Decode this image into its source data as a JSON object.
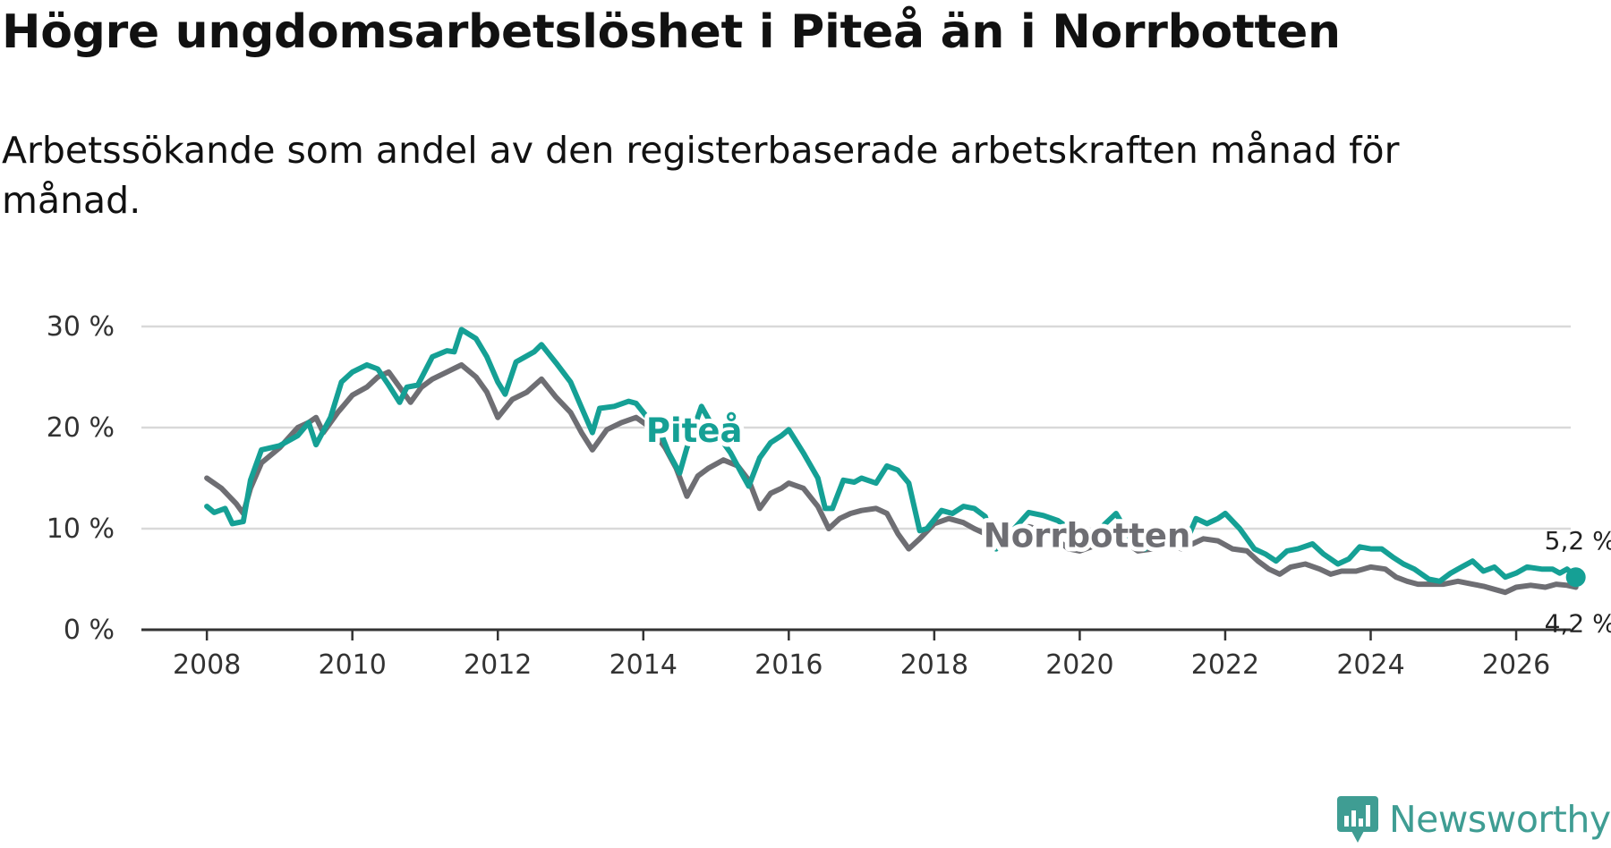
{
  "title": "Högre ungdomsarbetslöshet i Piteå än i Norrbotten",
  "subtitle": "Arbetssökande som andel av den registerbaserade arbetskraften månad för månad.",
  "brand": "Newsworthy",
  "colors": {
    "pitea": "#15a095",
    "norrbotten": "#6e6e73",
    "grid": "#d9d9d9",
    "axis": "#333333",
    "brand": "#3f9d93"
  },
  "chart_data": {
    "type": "line",
    "title": "Högre ungdomsarbetslöshet i Piteå än i Norrbotten",
    "xlabel": "",
    "ylabel": "",
    "xlim": [
      2007.1,
      2026.75
    ],
    "ylim": [
      0,
      30
    ],
    "y_ticks": [
      0,
      10,
      20,
      30
    ],
    "y_tick_labels": [
      "0 %",
      "10 %",
      "20 %",
      "30 %"
    ],
    "x_ticks": [
      2008,
      2010,
      2012,
      2014,
      2016,
      2018,
      2020,
      2022,
      2024,
      2026
    ],
    "x_tick_labels": [
      "2008",
      "2010",
      "2012",
      "2014",
      "2016",
      "2018",
      "2020",
      "2022",
      "2024",
      "2026"
    ],
    "grid": true,
    "series": [
      {
        "name": "Piteå",
        "label": "Piteå",
        "end_label": "5,2 %",
        "color": "#15a095",
        "points": [
          [
            2008.0,
            12.2
          ],
          [
            2008.1,
            11.6
          ],
          [
            2008.25,
            12.0
          ],
          [
            2008.35,
            10.5
          ],
          [
            2008.5,
            10.7
          ],
          [
            2008.6,
            14.8
          ],
          [
            2008.75,
            17.8
          ],
          [
            2009.0,
            18.2
          ],
          [
            2009.25,
            19.2
          ],
          [
            2009.4,
            20.5
          ],
          [
            2009.5,
            18.3
          ],
          [
            2009.7,
            21.0
          ],
          [
            2009.85,
            24.5
          ],
          [
            2010.0,
            25.5
          ],
          [
            2010.2,
            26.2
          ],
          [
            2010.35,
            25.8
          ],
          [
            2010.5,
            24.2
          ],
          [
            2010.65,
            22.5
          ],
          [
            2010.75,
            24.0
          ],
          [
            2010.9,
            24.2
          ],
          [
            2011.1,
            27.0
          ],
          [
            2011.3,
            27.6
          ],
          [
            2011.4,
            27.5
          ],
          [
            2011.5,
            29.7
          ],
          [
            2011.7,
            28.8
          ],
          [
            2011.85,
            27.0
          ],
          [
            2012.0,
            24.5
          ],
          [
            2012.1,
            23.3
          ],
          [
            2012.25,
            26.5
          ],
          [
            2012.5,
            27.5
          ],
          [
            2012.6,
            28.2
          ],
          [
            2012.8,
            26.4
          ],
          [
            2013.0,
            24.5
          ],
          [
            2013.15,
            22.0
          ],
          [
            2013.3,
            19.5
          ],
          [
            2013.4,
            21.9
          ],
          [
            2013.6,
            22.1
          ],
          [
            2013.8,
            22.6
          ],
          [
            2013.9,
            22.4
          ],
          [
            2014.1,
            20.6
          ],
          [
            2014.2,
            20.2
          ],
          [
            2014.35,
            17.5
          ],
          [
            2014.5,
            15.5
          ],
          [
            2014.6,
            18.0
          ],
          [
            2014.8,
            22.1
          ],
          [
            2015.0,
            19.5
          ],
          [
            2015.2,
            17.5
          ],
          [
            2015.35,
            15.5
          ],
          [
            2015.45,
            14.2
          ],
          [
            2015.6,
            17.0
          ],
          [
            2015.75,
            18.5
          ],
          [
            2015.9,
            19.2
          ],
          [
            2016.0,
            19.8
          ],
          [
            2016.2,
            17.5
          ],
          [
            2016.4,
            15.0
          ],
          [
            2016.5,
            12.0
          ],
          [
            2016.6,
            12.0
          ],
          [
            2016.75,
            14.8
          ],
          [
            2016.9,
            14.6
          ],
          [
            2017.0,
            15.0
          ],
          [
            2017.2,
            14.5
          ],
          [
            2017.35,
            16.2
          ],
          [
            2017.5,
            15.8
          ],
          [
            2017.65,
            14.5
          ],
          [
            2017.8,
            9.8
          ],
          [
            2017.9,
            10.0
          ],
          [
            2018.1,
            11.8
          ],
          [
            2018.25,
            11.5
          ],
          [
            2018.4,
            12.2
          ],
          [
            2018.55,
            12.0
          ],
          [
            2018.7,
            11.2
          ],
          [
            2018.85,
            8.0
          ],
          [
            2018.95,
            8.5
          ],
          [
            2019.1,
            10.0
          ],
          [
            2019.3,
            11.6
          ],
          [
            2019.5,
            11.3
          ],
          [
            2019.7,
            10.8
          ],
          [
            2019.9,
            9.8
          ],
          [
            2020.0,
            8.2
          ],
          [
            2020.15,
            9.0
          ],
          [
            2020.35,
            10.5
          ],
          [
            2020.5,
            11.5
          ],
          [
            2020.7,
            9.0
          ],
          [
            2020.9,
            8.0
          ],
          [
            2021.1,
            9.5
          ],
          [
            2021.3,
            10.0
          ],
          [
            2021.45,
            8.5
          ],
          [
            2021.6,
            11.0
          ],
          [
            2021.75,
            10.5
          ],
          [
            2021.9,
            11.0
          ],
          [
            2022.0,
            11.5
          ],
          [
            2022.2,
            10.0
          ],
          [
            2022.4,
            8.0
          ],
          [
            2022.55,
            7.5
          ],
          [
            2022.7,
            6.8
          ],
          [
            2022.85,
            7.8
          ],
          [
            2023.0,
            8.0
          ],
          [
            2023.2,
            8.5
          ],
          [
            2023.35,
            7.5
          ],
          [
            2023.55,
            6.5
          ],
          [
            2023.7,
            7.0
          ],
          [
            2023.85,
            8.2
          ],
          [
            2024.0,
            8.0
          ],
          [
            2024.15,
            8.0
          ],
          [
            2024.3,
            7.2
          ],
          [
            2024.45,
            6.5
          ],
          [
            2024.6,
            6.0
          ],
          [
            2024.8,
            5.0
          ],
          [
            2024.95,
            4.8
          ],
          [
            2025.1,
            5.6
          ],
          [
            2025.25,
            6.2
          ],
          [
            2025.4,
            6.8
          ],
          [
            2025.55,
            5.8
          ],
          [
            2025.7,
            6.2
          ],
          [
            2025.85,
            5.2
          ],
          [
            2026.0,
            5.6
          ],
          [
            2026.15,
            6.2
          ],
          [
            2026.35,
            6.0
          ],
          [
            2026.5,
            6.0
          ],
          [
            2026.6,
            5.6
          ],
          [
            2026.7,
            6.0
          ],
          [
            2026.82,
            5.2
          ]
        ]
      },
      {
        "name": "Norrbotten",
        "label": "Norrbotten",
        "end_label": "4,2 %",
        "color": "#6e6e73",
        "points": [
          [
            2008.0,
            15.0
          ],
          [
            2008.2,
            14.0
          ],
          [
            2008.4,
            12.5
          ],
          [
            2008.5,
            11.5
          ],
          [
            2008.6,
            14.0
          ],
          [
            2008.75,
            16.5
          ],
          [
            2009.0,
            18.0
          ],
          [
            2009.25,
            20.0
          ],
          [
            2009.4,
            20.5
          ],
          [
            2009.5,
            21.0
          ],
          [
            2009.6,
            19.5
          ],
          [
            2009.8,
            21.5
          ],
          [
            2010.0,
            23.2
          ],
          [
            2010.2,
            24.0
          ],
          [
            2010.35,
            25.0
          ],
          [
            2010.5,
            25.5
          ],
          [
            2010.65,
            24.0
          ],
          [
            2010.8,
            22.5
          ],
          [
            2010.95,
            24.0
          ],
          [
            2011.1,
            24.8
          ],
          [
            2011.3,
            25.5
          ],
          [
            2011.5,
            26.2
          ],
          [
            2011.7,
            25.0
          ],
          [
            2011.85,
            23.5
          ],
          [
            2012.0,
            21.0
          ],
          [
            2012.2,
            22.8
          ],
          [
            2012.4,
            23.5
          ],
          [
            2012.6,
            24.8
          ],
          [
            2012.8,
            23.0
          ],
          [
            2013.0,
            21.5
          ],
          [
            2013.15,
            19.5
          ],
          [
            2013.3,
            17.8
          ],
          [
            2013.5,
            19.8
          ],
          [
            2013.7,
            20.5
          ],
          [
            2013.9,
            21.0
          ],
          [
            2014.1,
            20.0
          ],
          [
            2014.3,
            18.0
          ],
          [
            2014.45,
            16.0
          ],
          [
            2014.6,
            13.2
          ],
          [
            2014.75,
            15.2
          ],
          [
            2014.9,
            16.0
          ],
          [
            2015.1,
            16.8
          ],
          [
            2015.3,
            16.2
          ],
          [
            2015.45,
            14.8
          ],
          [
            2015.6,
            12.0
          ],
          [
            2015.75,
            13.5
          ],
          [
            2015.9,
            14.0
          ],
          [
            2016.0,
            14.5
          ],
          [
            2016.2,
            14.0
          ],
          [
            2016.4,
            12.2
          ],
          [
            2016.55,
            10.0
          ],
          [
            2016.7,
            11.0
          ],
          [
            2016.85,
            11.5
          ],
          [
            2017.0,
            11.8
          ],
          [
            2017.2,
            12.0
          ],
          [
            2017.35,
            11.5
          ],
          [
            2017.5,
            9.5
          ],
          [
            2017.65,
            8.0
          ],
          [
            2017.8,
            9.0
          ],
          [
            2018.0,
            10.5
          ],
          [
            2018.2,
            11.0
          ],
          [
            2018.4,
            10.6
          ],
          [
            2018.55,
            10.0
          ],
          [
            2018.7,
            9.5
          ],
          [
            2018.85,
            8.0
          ],
          [
            2018.95,
            8.5
          ],
          [
            2019.1,
            9.5
          ],
          [
            2019.3,
            10.2
          ],
          [
            2019.5,
            9.8
          ],
          [
            2019.7,
            8.8
          ],
          [
            2019.85,
            8.0
          ],
          [
            2020.0,
            7.8
          ],
          [
            2020.2,
            8.3
          ],
          [
            2020.4,
            9.0
          ],
          [
            2020.6,
            8.8
          ],
          [
            2020.8,
            7.8
          ],
          [
            2021.0,
            8.0
          ],
          [
            2021.2,
            8.8
          ],
          [
            2021.4,
            8.0
          ],
          [
            2021.55,
            8.5
          ],
          [
            2021.7,
            9.0
          ],
          [
            2021.9,
            8.8
          ],
          [
            2022.1,
            8.0
          ],
          [
            2022.3,
            7.8
          ],
          [
            2022.45,
            6.8
          ],
          [
            2022.6,
            6.0
          ],
          [
            2022.75,
            5.5
          ],
          [
            2022.9,
            6.2
          ],
          [
            2023.1,
            6.5
          ],
          [
            2023.3,
            6.0
          ],
          [
            2023.45,
            5.5
          ],
          [
            2023.6,
            5.8
          ],
          [
            2023.8,
            5.8
          ],
          [
            2024.0,
            6.2
          ],
          [
            2024.2,
            6.0
          ],
          [
            2024.35,
            5.2
          ],
          [
            2024.5,
            4.8
          ],
          [
            2024.65,
            4.5
          ],
          [
            2024.8,
            4.5
          ],
          [
            2025.0,
            4.5
          ],
          [
            2025.2,
            4.8
          ],
          [
            2025.4,
            4.5
          ],
          [
            2025.55,
            4.3
          ],
          [
            2025.7,
            4.0
          ],
          [
            2025.85,
            3.7
          ],
          [
            2026.0,
            4.2
          ],
          [
            2026.2,
            4.4
          ],
          [
            2026.4,
            4.2
          ],
          [
            2026.55,
            4.5
          ],
          [
            2026.7,
            4.4
          ],
          [
            2026.82,
            4.2
          ]
        ]
      }
    ]
  }
}
